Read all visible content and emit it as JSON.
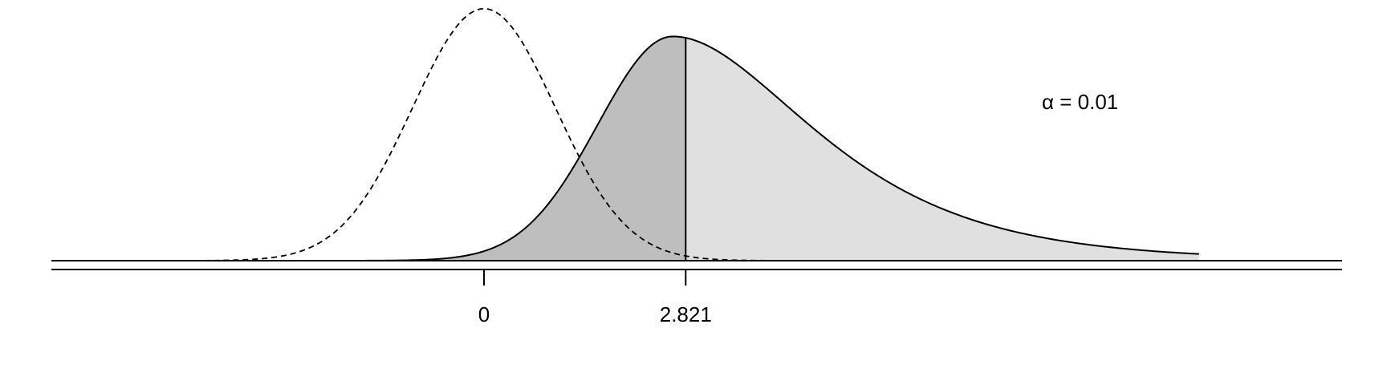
{
  "chart_data": {
    "type": "area",
    "title": "",
    "xlabel": "",
    "ylabel": "",
    "annotation": "α = 0.01",
    "ticks": [
      {
        "value": 0,
        "label": "0"
      },
      {
        "value": 2.821,
        "label": "2.821"
      }
    ],
    "critical_value": 2.821,
    "alpha": 0.01,
    "xlim": [
      -6.05,
      12.0
    ],
    "ylim": [
      0,
      0.4
    ],
    "grid": false,
    "series": [
      {
        "distribution": "central t",
        "mean": 0,
        "sd": 1,
        "style": "dashed",
        "fill": "none"
      },
      {
        "distribution": "noncentral t",
        "mode": 2.64,
        "peak_density": 0.355,
        "style": "solid",
        "fill_left_of_critical": "#bebebe",
        "fill_right_of_critical": "#e0e0e0"
      }
    ],
    "colors": {
      "beta_region": "#bebebe",
      "power_region": "#e0e0e0",
      "line": "#000000"
    }
  }
}
